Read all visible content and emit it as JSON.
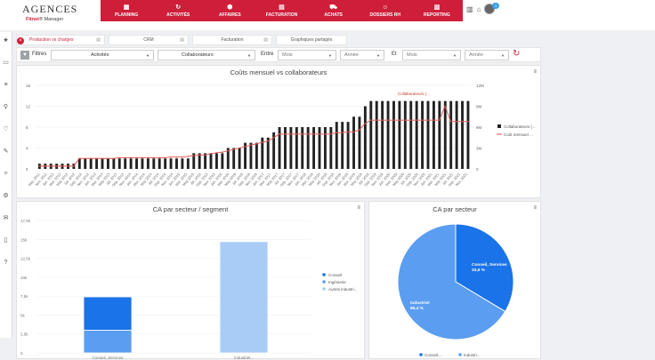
{
  "logo": {
    "line1": "AGENCES",
    "line2a": "Fitnet",
    "line2b": "Manager"
  },
  "nav": [
    {
      "icon": "calendar-icon",
      "glyph": "▦",
      "label": "PLANNING"
    },
    {
      "icon": "refresh-icon",
      "glyph": "↻",
      "label": "ACTIVITÉS"
    },
    {
      "icon": "cubes-icon",
      "glyph": "⬢",
      "label": "AFFAIRES"
    },
    {
      "icon": "invoice-icon",
      "glyph": "▤",
      "label": "FACTURATION"
    },
    {
      "icon": "cart-icon",
      "glyph": "⛟",
      "label": "ACHATS"
    },
    {
      "icon": "people-icon",
      "glyph": "☺",
      "label": "DOSSIERS RH"
    },
    {
      "icon": "bar-chart-icon",
      "glyph": "▥",
      "label": "REPORTING"
    }
  ],
  "top_icons": {
    "notif_count": "2"
  },
  "tabs": [
    {
      "label": "Production vs charges",
      "active": true
    },
    {
      "label": "CRM",
      "active": false
    },
    {
      "label": "Facturation",
      "active": false
    },
    {
      "label": "Graphiques partagés",
      "active": false
    }
  ],
  "filters": {
    "label": "Filtres",
    "activites": "Activités",
    "collaborateurs": "Collaborateurs",
    "entre_label": "Entre",
    "mois1": "Mois",
    "annee1": "Année",
    "et_label": "Et",
    "mois2": "Mois",
    "annee2": "Année"
  },
  "colors": {
    "brand": "#cf1e39",
    "blue_dark": "#1a73e8",
    "blue_mid": "#5b9df0",
    "blue_light": "#a8ccf5",
    "line_red": "#d9534f"
  },
  "chart_top": {
    "title": "Coûts mensuel vs collaborateurs",
    "legend": [
      "Collaborateurs (...",
      "Coût mensuel ..."
    ],
    "y_left_ticks": [
      "16",
      "12",
      "8",
      "4",
      "0"
    ],
    "y_right_ticks": [
      "12M",
      "9M",
      "6M",
      "3M",
      "0"
    ],
    "x_labels": [
      "Sep. 2011",
      "Nov. 2011",
      "Jan. 2012",
      "Mar. 2012",
      "May 2012",
      "Jul. 2012",
      "Sep. 2012",
      "Nov. 2012",
      "Jan. 2013",
      "Mar. 2013",
      "May 2013",
      "Jul. 2013",
      "Sep. 2013",
      "Nov. 2013",
      "Jan. 2014",
      "Mar. 2014",
      "May 2014",
      "Jul. 2014",
      "Sep. 2014",
      "Nov. 2014",
      "Jan. 2015",
      "Mar. 2015",
      "May 2015",
      "Jul. 2015",
      "Sep. 2015",
      "Nov. 2015",
      "Jan. 2016",
      "Mar. 2016",
      "May 2016",
      "Jul. 2016",
      "Sep. 2016",
      "Nov. 2016",
      "Jan. 2017",
      "Mar. 2017",
      "May 2017",
      "Jul. 2017",
      "Sep. 2017",
      "Nov. 2017",
      "Jan. 2018",
      "Mar. 2018",
      "May 2018",
      "Jul. 2018",
      "Sep. 2018",
      "Nov. 2018",
      "Jan. 2019",
      "Mar. 2019",
      "May 2019",
      "Jul. 2019",
      "Sep. 2019",
      "Nov. 2019",
      "Jan. 2020",
      "Mar. 2020",
      "May 2020",
      "Jul. 2020",
      "Sep. 2020",
      "Nov. 2020",
      "Jan. 2021",
      "Mar. 2021",
      "May 2021",
      "Jul. 2021",
      "Sep. 2021",
      "Nov. 2021"
    ],
    "annotation": "Collaborateurs (...",
    "chart_data": {
      "type": "bar",
      "ylim_left": [
        0,
        16
      ],
      "ylim_right": [
        0,
        12
      ],
      "collaborateurs": [
        1,
        1,
        1,
        1,
        1,
        1,
        1,
        2,
        2,
        2,
        2,
        2,
        2,
        2,
        2,
        2,
        2,
        2,
        2,
        2,
        2,
        2,
        2,
        2,
        2,
        2,
        2,
        3,
        3,
        3,
        3,
        3,
        3,
        4,
        4,
        4,
        5,
        5,
        5,
        6,
        6,
        7,
        8,
        8,
        8,
        8,
        8,
        8,
        8,
        8,
        8,
        8,
        9,
        9,
        9,
        10,
        10,
        12,
        13,
        13,
        13,
        13,
        13,
        13,
        13,
        13,
        13,
        13,
        13,
        13,
        13,
        13,
        13,
        13,
        13,
        13
      ],
      "cout": [
        0.4,
        0.4,
        0.4,
        0.4,
        0.4,
        0.4,
        0.4,
        1.5,
        1.5,
        1.5,
        1.5,
        1.5,
        1.5,
        1.5,
        1.6,
        1.6,
        1.6,
        1.6,
        1.6,
        1.6,
        1.6,
        1.6,
        1.6,
        1.7,
        1.7,
        1.7,
        1.8,
        1.9,
        2,
        2,
        2.2,
        2.3,
        2.4,
        2.6,
        2.8,
        3,
        3.2,
        3.4,
        3.6,
        3.8,
        4,
        4.5,
        5,
        5,
        5,
        5,
        5,
        5,
        5,
        5,
        5,
        5,
        5.2,
        5.2,
        5.3,
        5.3,
        5.6,
        6.5,
        7,
        7,
        7,
        7,
        7,
        7,
        7,
        7,
        7,
        7,
        7,
        7,
        7,
        9,
        6.8,
        6.8,
        6.8,
        6.8
      ]
    }
  },
  "chart_bar": {
    "title": "CA par secteur / segment",
    "y_ticks": [
      "17,5k",
      "15k",
      "12,5k",
      "10k",
      "7,5k",
      "5k",
      "2,5k",
      "0"
    ],
    "legend": [
      "Conseil",
      "Ingénierie",
      "Autres industri..."
    ],
    "categories": [
      "Conseil, Services",
      "Industriel..."
    ],
    "chart_data": {
      "type": "bar",
      "categories": [
        "Conseil, Services",
        "Industriel..."
      ],
      "series": [
        {
          "name": "Conseil",
          "values": [
            4400,
            0
          ]
        },
        {
          "name": "Ingénierie",
          "values": [
            3000,
            0
          ]
        },
        {
          "name": "Autres industri...",
          "values": [
            0,
            14700
          ]
        }
      ],
      "ylim": [
        0,
        17500
      ]
    }
  },
  "chart_pie": {
    "title": "CA par secteur",
    "legend": [
      "Conseil,...",
      "Industri..."
    ],
    "label1_name": "Conseil, Services",
    "label1_val": "33,6 %",
    "label2_name": "Industriel",
    "label2_val": "66,4 %",
    "chart_data": {
      "type": "pie",
      "labels": [
        "Conseil, Services",
        "Industriel"
      ],
      "values": [
        33.6,
        66.4
      ]
    }
  }
}
